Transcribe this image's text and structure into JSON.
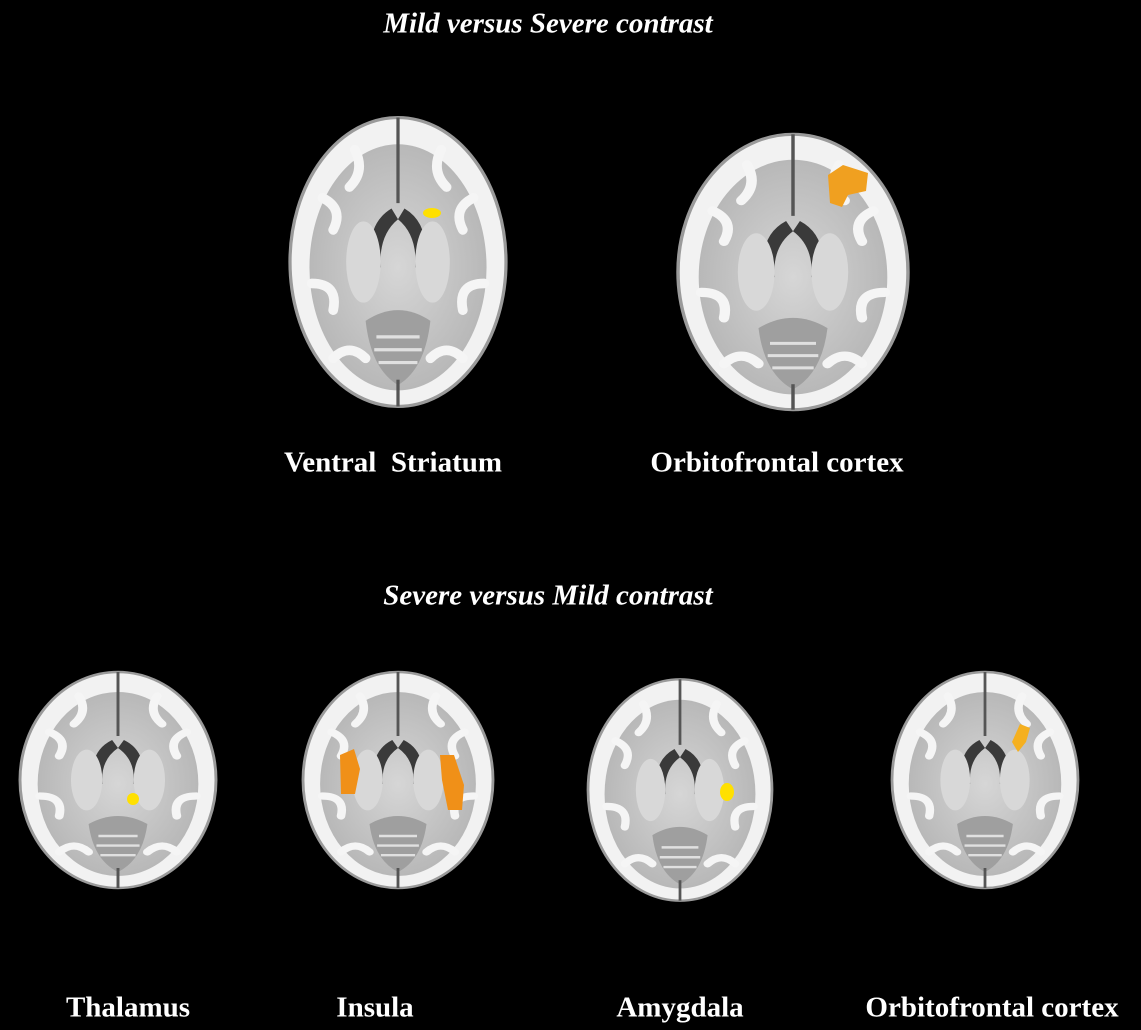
{
  "sections": [
    {
      "title": "Mild versus Severe contrast",
      "panels": [
        {
          "label": "Ventral  Striatum"
        },
        {
          "label": "Orbitofrontal cortex"
        }
      ]
    },
    {
      "title": "Severe versus Mild contrast",
      "panels": [
        {
          "label": "Thalamus"
        },
        {
          "label": "Insula"
        },
        {
          "label": "Amygdala"
        },
        {
          "label": "Orbitofrontal cortex"
        }
      ]
    }
  ]
}
